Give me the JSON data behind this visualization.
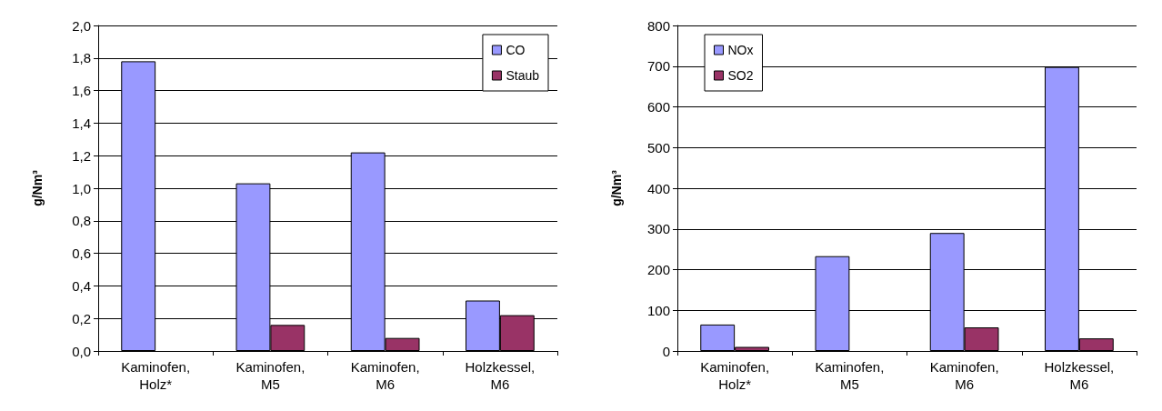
{
  "chart_data": [
    {
      "type": "bar",
      "ylabel": "g/Nm³",
      "categories": [
        "Kaminofen,\nHolz*",
        "Kaminofen,\nM5",
        "Kaminofen,\nM6",
        "Holzkessel,\nM6"
      ],
      "series": [
        {
          "name": "CO",
          "color": "#9999ff",
          "values": [
            1.78,
            1.03,
            1.22,
            0.31
          ]
        },
        {
          "name": "Staub",
          "color": "#993366",
          "values": [
            null,
            0.16,
            0.08,
            0.22
          ]
        }
      ],
      "ylim": [
        0,
        2
      ],
      "yticks": [
        {
          "value": 0,
          "label": "0,0"
        },
        {
          "value": 0.2,
          "label": "0,2"
        },
        {
          "value": 0.4,
          "label": "0,4"
        },
        {
          "value": 0.6,
          "label": "0,6"
        },
        {
          "value": 0.8,
          "label": "0,8"
        },
        {
          "value": 1,
          "label": "1,0"
        },
        {
          "value": 1.2,
          "label": "1,2"
        },
        {
          "value": 1.4,
          "label": "1,4"
        },
        {
          "value": 1.6,
          "label": "1,6"
        },
        {
          "value": 1.8,
          "label": "1,8"
        },
        {
          "value": 2,
          "label": "2,0"
        }
      ],
      "grid": "y",
      "legend": "top right"
    },
    {
      "type": "bar",
      "ylabel": "g/Nm³",
      "categories": [
        "Kaminofen,\nHolz*",
        "Kaminofen,\nM5",
        "Kaminofen,\nM6",
        "Holzkessel,\nM6"
      ],
      "series": [
        {
          "name": "NOx",
          "color": "#9999ff",
          "values": [
            65,
            233,
            290,
            698
          ]
        },
        {
          "name": "SO2",
          "color": "#993366",
          "values": [
            10,
            null,
            58,
            31
          ]
        }
      ],
      "ylim": [
        0,
        800
      ],
      "yticks": [
        0,
        100,
        200,
        300,
        400,
        500,
        600,
        700,
        800
      ],
      "grid": "y",
      "legend": "top left"
    }
  ]
}
